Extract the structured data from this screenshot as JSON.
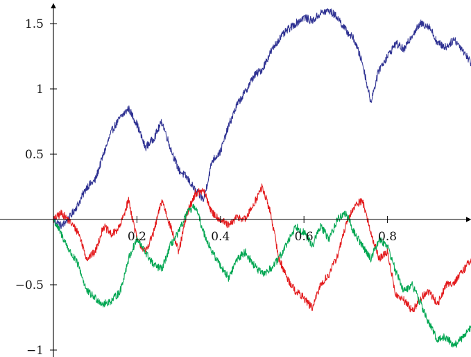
{
  "chart_data": {
    "type": "line",
    "title": "",
    "xlabel": "",
    "ylabel": "",
    "xlim": [
      0,
      1
    ],
    "ylim": [
      -1.05,
      1.6
    ],
    "grid": false,
    "legend": "none",
    "x_ticks": [
      {
        "value": 0.2,
        "label": "0.2"
      },
      {
        "value": 0.4,
        "label": "0.4"
      },
      {
        "value": 0.6,
        "label": "0.6"
      },
      {
        "value": 0.8,
        "label": "0.8"
      }
    ],
    "y_ticks": [
      {
        "value": 1.5,
        "label": "1.5"
      },
      {
        "value": 1,
        "label": "1"
      },
      {
        "value": 0.5,
        "label": "0.5"
      },
      {
        "value": -0.5,
        "label": "−0.5"
      },
      {
        "value": -1,
        "label": "−1"
      }
    ],
    "x": [
      0.0,
      0.02,
      0.04,
      0.06,
      0.08,
      0.1,
      0.12,
      0.14,
      0.16,
      0.18,
      0.2,
      0.22,
      0.24,
      0.26,
      0.28,
      0.3,
      0.32,
      0.34,
      0.36,
      0.38,
      0.4,
      0.42,
      0.44,
      0.46,
      0.48,
      0.5,
      0.52,
      0.54,
      0.56,
      0.58,
      0.6,
      0.62,
      0.64,
      0.66,
      0.68,
      0.7,
      0.72,
      0.74,
      0.76,
      0.78,
      0.8,
      0.82,
      0.84,
      0.86,
      0.88,
      0.9,
      0.92,
      0.94,
      0.96,
      0.98,
      1.0
    ],
    "series": [
      {
        "color": "#2e3192",
        "values": [
          0.0,
          -0.05,
          0.02,
          0.12,
          0.25,
          0.3,
          0.5,
          0.68,
          0.78,
          0.85,
          0.73,
          0.55,
          0.62,
          0.75,
          0.55,
          0.38,
          0.32,
          0.22,
          0.15,
          0.45,
          0.52,
          0.72,
          0.88,
          0.98,
          1.1,
          1.15,
          1.28,
          1.38,
          1.45,
          1.5,
          1.55,
          1.52,
          1.58,
          1.6,
          1.55,
          1.45,
          1.38,
          1.2,
          0.9,
          1.15,
          1.25,
          1.35,
          1.3,
          1.42,
          1.5,
          1.48,
          1.35,
          1.32,
          1.38,
          1.3,
          1.2
        ]
      },
      {
        "color": "#e31a1c",
        "values": [
          0.0,
          0.05,
          -0.02,
          -0.1,
          -0.3,
          -0.25,
          -0.05,
          -0.12,
          -0.05,
          0.15,
          -0.15,
          -0.25,
          -0.1,
          0.15,
          -0.05,
          -0.25,
          0.05,
          0.2,
          0.22,
          0.05,
          0.0,
          -0.05,
          0.02,
          0.0,
          0.12,
          0.25,
          0.05,
          -0.3,
          -0.45,
          -0.55,
          -0.6,
          -0.68,
          -0.5,
          -0.42,
          -0.28,
          -0.05,
          0.1,
          0.15,
          -0.1,
          -0.3,
          -0.25,
          -0.58,
          -0.62,
          -0.7,
          -0.6,
          -0.55,
          -0.65,
          -0.5,
          -0.48,
          -0.4,
          -0.3
        ]
      },
      {
        "color": "#00a651",
        "values": [
          0.0,
          -0.12,
          -0.25,
          -0.35,
          -0.55,
          -0.6,
          -0.65,
          -0.62,
          -0.55,
          -0.3,
          -0.15,
          -0.25,
          -0.35,
          -0.38,
          -0.2,
          -0.1,
          0.05,
          0.1,
          -0.1,
          -0.25,
          -0.35,
          -0.45,
          -0.3,
          -0.25,
          -0.35,
          -0.42,
          -0.38,
          -0.3,
          -0.18,
          -0.05,
          -0.1,
          -0.2,
          -0.05,
          -0.15,
          0.0,
          0.05,
          -0.1,
          -0.2,
          -0.3,
          -0.15,
          -0.2,
          -0.4,
          -0.55,
          -0.5,
          -0.65,
          -0.8,
          -0.92,
          -0.9,
          -0.97,
          -0.9,
          -0.82
        ]
      }
    ]
  }
}
